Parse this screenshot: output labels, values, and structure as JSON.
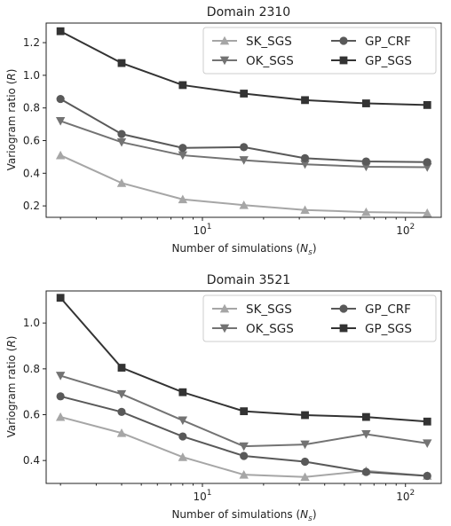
{
  "chart_data": [
    {
      "type": "line",
      "title": "Domain 2310",
      "xlabel": "Number of simulations (N_s)",
      "ylabel": "Variogram ratio (R)",
      "xscale": "log",
      "x": [
        2,
        4,
        8,
        16,
        32,
        64,
        128
      ],
      "xlim": [
        1.7,
        150
      ],
      "ylim": [
        0.13,
        1.32
      ],
      "yticks": [
        0.2,
        0.4,
        0.6,
        0.8,
        1.0,
        1.2
      ],
      "ytick_labels": [
        "0.2",
        "0.4",
        "0.6",
        "0.8",
        "1.0",
        "1.2"
      ],
      "xtick_labels": [
        "10",
        "1",
        "10",
        "2"
      ],
      "legend_placement": "top-right",
      "grid": false,
      "series": [
        {
          "name": "SK_SGS",
          "marker": "triangle-up",
          "color": "#a6a6a6",
          "values": [
            0.51,
            0.34,
            0.24,
            0.205,
            0.175,
            0.162,
            0.157
          ]
        },
        {
          "name": "OK_SGS",
          "marker": "triangle-down",
          "color": "#737373",
          "values": [
            0.72,
            0.59,
            0.51,
            0.48,
            0.455,
            0.44,
            0.437
          ]
        },
        {
          "name": "GP_CRF",
          "marker": "circle",
          "color": "#595959",
          "values": [
            0.855,
            0.64,
            0.555,
            0.56,
            0.492,
            0.472,
            0.468
          ]
        },
        {
          "name": "GP_SGS",
          "marker": "square",
          "color": "#333333",
          "values": [
            1.27,
            1.075,
            0.94,
            0.888,
            0.848,
            0.828,
            0.818
          ]
        }
      ]
    },
    {
      "type": "line",
      "title": "Domain 3521",
      "xlabel": "Number of simulations (N_s)",
      "ylabel": "Variogram ratio (R)",
      "xscale": "log",
      "x": [
        2,
        4,
        8,
        16,
        32,
        64,
        128
      ],
      "xlim": [
        1.7,
        150
      ],
      "ylim": [
        0.3,
        1.14
      ],
      "yticks": [
        0.4,
        0.6,
        0.8,
        1.0
      ],
      "ytick_labels": [
        "0.4",
        "0.6",
        "0.8",
        "1.0"
      ],
      "xtick_labels": [
        "10",
        "1",
        "10",
        "2"
      ],
      "legend_placement": "top-right",
      "grid": false,
      "series": [
        {
          "name": "SK_SGS",
          "marker": "triangle-up",
          "color": "#a6a6a6",
          "values": [
            0.59,
            0.52,
            0.415,
            0.338,
            0.328,
            0.355,
            0.333
          ]
        },
        {
          "name": "OK_SGS",
          "marker": "triangle-down",
          "color": "#737373",
          "values": [
            0.77,
            0.69,
            0.575,
            0.462,
            0.47,
            0.515,
            0.475
          ]
        },
        {
          "name": "GP_CRF",
          "marker": "circle",
          "color": "#595959",
          "values": [
            0.68,
            0.612,
            0.505,
            0.42,
            0.395,
            0.35,
            0.333
          ]
        },
        {
          "name": "GP_SGS",
          "marker": "square",
          "color": "#333333",
          "values": [
            1.11,
            0.805,
            0.698,
            0.615,
            0.598,
            0.59,
            0.57
          ]
        }
      ]
    }
  ]
}
